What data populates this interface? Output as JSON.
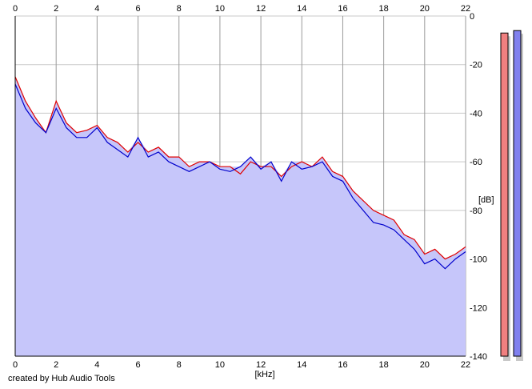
{
  "credit": "created by Hub Audio Tools",
  "chart_data": {
    "type": "line",
    "xlabel": "[kHz]",
    "ylabel": "[dB]",
    "xlim": [
      0,
      22
    ],
    "ylim": [
      -140,
      0
    ],
    "x_ticks": [
      0,
      2,
      4,
      6,
      8,
      10,
      12,
      14,
      16,
      18,
      20,
      22
    ],
    "y_ticks": [
      0,
      -20,
      -40,
      -60,
      -80,
      -100,
      -120,
      -140
    ],
    "grid": true,
    "fill_color": "#c6c6fa",
    "series": [
      {
        "color": "#e00000",
        "x": [
          0,
          0.5,
          1,
          1.5,
          2,
          2.5,
          3,
          3.5,
          4,
          4.5,
          5,
          5.5,
          6,
          6.5,
          7,
          7.5,
          8,
          8.5,
          9,
          9.5,
          10,
          10.5,
          11,
          11.5,
          12,
          12.5,
          13,
          13.5,
          14,
          14.5,
          15,
          15.5,
          16,
          16.5,
          17,
          17.5,
          18,
          18.5,
          19,
          19.5,
          20,
          20.5,
          21,
          21.5,
          22
        ],
        "values": [
          -25,
          -35,
          -42,
          -48,
          -35,
          -44,
          -48,
          -47,
          -45,
          -50,
          -52,
          -56,
          -52,
          -56,
          -54,
          -58,
          -58,
          -62,
          -60,
          -60,
          -62,
          -62,
          -65,
          -60,
          -62,
          -62,
          -66,
          -62,
          -60,
          -62,
          -58,
          -64,
          -66,
          -72,
          -76,
          -80,
          -82,
          -84,
          -90,
          -92,
          -98,
          -96,
          -100,
          -98,
          -95
        ]
      },
      {
        "color": "#0000cc",
        "x": [
          0,
          0.5,
          1,
          1.5,
          2,
          2.5,
          3,
          3.5,
          4,
          4.5,
          5,
          5.5,
          6,
          6.5,
          7,
          7.5,
          8,
          8.5,
          9,
          9.5,
          10,
          10.5,
          11,
          11.5,
          12,
          12.5,
          13,
          13.5,
          14,
          14.5,
          15,
          15.5,
          16,
          16.5,
          17,
          17.5,
          18,
          18.5,
          19,
          19.5,
          20,
          20.5,
          21,
          21.5,
          22
        ],
        "values": [
          -28,
          -38,
          -44,
          -48,
          -38,
          -46,
          -50,
          -50,
          -46,
          -52,
          -55,
          -58,
          -50,
          -58,
          -56,
          -60,
          -62,
          -64,
          -62,
          -60,
          -63,
          -64,
          -62,
          -58,
          -63,
          -60,
          -68,
          -60,
          -63,
          -62,
          -60,
          -66,
          -68,
          -75,
          -80,
          -85,
          -86,
          -88,
          -92,
          -96,
          -102,
          -100,
          -104,
          -100,
          -97
        ]
      }
    ]
  },
  "level_meters": [
    {
      "channel": "left",
      "color": "#f08080",
      "level_db": -7
    },
    {
      "channel": "right",
      "color": "#8080ee",
      "level_db": -6
    }
  ]
}
